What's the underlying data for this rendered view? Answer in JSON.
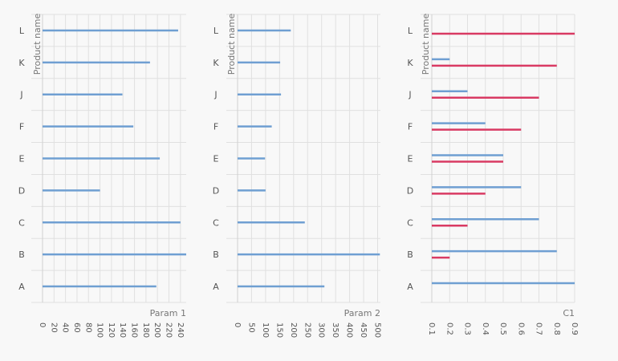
{
  "chart_data": [
    {
      "type": "bar",
      "orientation": "horizontal",
      "categories": [
        "A",
        "B",
        "C",
        "D",
        "E",
        "F",
        "J",
        "K",
        "L"
      ],
      "xlabel": "Param 1",
      "ylabel": "Product name",
      "xlim": [
        0,
        250
      ],
      "xticks": [
        "0",
        "20",
        "40",
        "60",
        "80",
        "100",
        "120",
        "140",
        "160",
        "180",
        "200",
        "220",
        "240"
      ],
      "grid": true,
      "series": [
        {
          "values": [
            198,
            250,
            240,
            100,
            204,
            158,
            139,
            187,
            236
          ],
          "color": "#6f9fd2"
        }
      ]
    },
    {
      "type": "bar",
      "orientation": "horizontal",
      "categories": [
        "A",
        "B",
        "C",
        "D",
        "E",
        "F",
        "J",
        "K",
        "L"
      ],
      "xlabel": "Param 2",
      "ylabel": "Product name",
      "xlim": [
        0,
        510
      ],
      "xticks": [
        "0",
        "50",
        "100",
        "150",
        "200",
        "250",
        "300",
        "350",
        "400",
        "450",
        "500"
      ],
      "grid": true,
      "series": [
        {
          "values": [
            310,
            508,
            240,
            100,
            98,
            122,
            155,
            152,
            190
          ],
          "color": "#6f9fd2"
        }
      ]
    },
    {
      "type": "bar",
      "orientation": "horizontal",
      "categories": [
        "A",
        "B",
        "C",
        "D",
        "E",
        "F",
        "J",
        "K",
        "L"
      ],
      "xlabel": "C1",
      "ylabel": "Product name",
      "xlim": [
        0.1,
        0.9
      ],
      "xticks": [
        "0.1",
        "0.2",
        "0.3",
        "0.4",
        "0.5",
        "0.6",
        "0.7",
        "0.8",
        "0.9"
      ],
      "grid": true,
      "series": [
        {
          "values": [
            0.9,
            0.8,
            0.7,
            0.6,
            0.5,
            0.4,
            0.3,
            0.2,
            null
          ],
          "color": "#6f9fd2"
        },
        {
          "values": [
            null,
            0.2,
            0.3,
            0.4,
            0.5,
            0.6,
            0.7,
            0.8,
            0.9
          ],
          "color": "#d93a63"
        }
      ]
    }
  ]
}
